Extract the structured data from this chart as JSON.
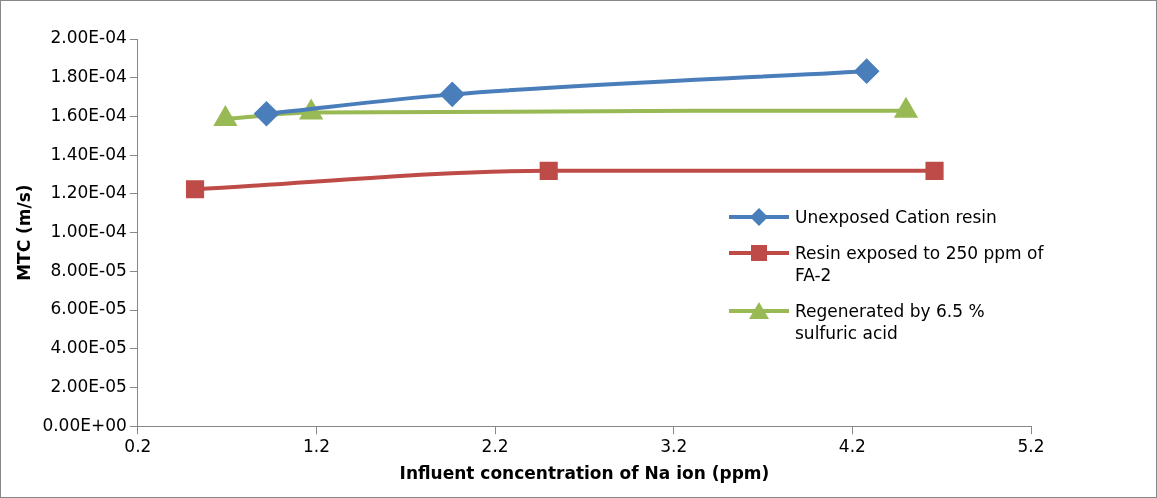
{
  "chart_data": {
    "type": "line",
    "xlabel": "Influent concentration of Na ion (ppm)",
    "ylabel": "MTC (m/s)",
    "xlim": [
      0.2,
      5.2
    ],
    "xticks": [
      0.2,
      1.2,
      2.2,
      3.2,
      4.2,
      5.2
    ],
    "ylim": [
      0,
      0.0002
    ],
    "yticks": [
      {
        "value": 0,
        "label": "0.00E+00"
      },
      {
        "value": 2e-05,
        "label": "2.00E-05"
      },
      {
        "value": 4e-05,
        "label": "4.00E-05"
      },
      {
        "value": 6e-05,
        "label": "6.00E-05"
      },
      {
        "value": 8e-05,
        "label": "8.00E-05"
      },
      {
        "value": 0.0001,
        "label": "1.00E-04"
      },
      {
        "value": 0.00012,
        "label": "1.20E-04"
      },
      {
        "value": 0.00014,
        "label": "1.40E-04"
      },
      {
        "value": 0.00016,
        "label": "1.60E-04"
      },
      {
        "value": 0.00018,
        "label": "1.80E-04"
      },
      {
        "value": 0.0002,
        "label": "2.00E-04"
      }
    ],
    "grid": false,
    "legend": "right",
    "series": [
      {
        "name": "Unexposed Cation resin",
        "color": "#4a7ebb",
        "marker": "diamond",
        "x": [
          0.92,
          1.96,
          4.28
        ],
        "values": [
          0.0001614,
          0.0001714,
          0.0001834
        ]
      },
      {
        "name": "Resin exposed to 250 ppm of FA-2",
        "color": "#be4b48",
        "marker": "square",
        "x": [
          0.52,
          2.5,
          4.66
        ],
        "values": [
          0.0001224,
          0.0001319,
          0.0001319
        ]
      },
      {
        "name": "Regenerated by 6.5 % sulfuric acid",
        "color": "#98b954",
        "marker": "triangle",
        "x": [
          0.69,
          1.17,
          4.5
        ],
        "values": [
          0.0001587,
          0.000162,
          0.000163
        ]
      }
    ]
  }
}
